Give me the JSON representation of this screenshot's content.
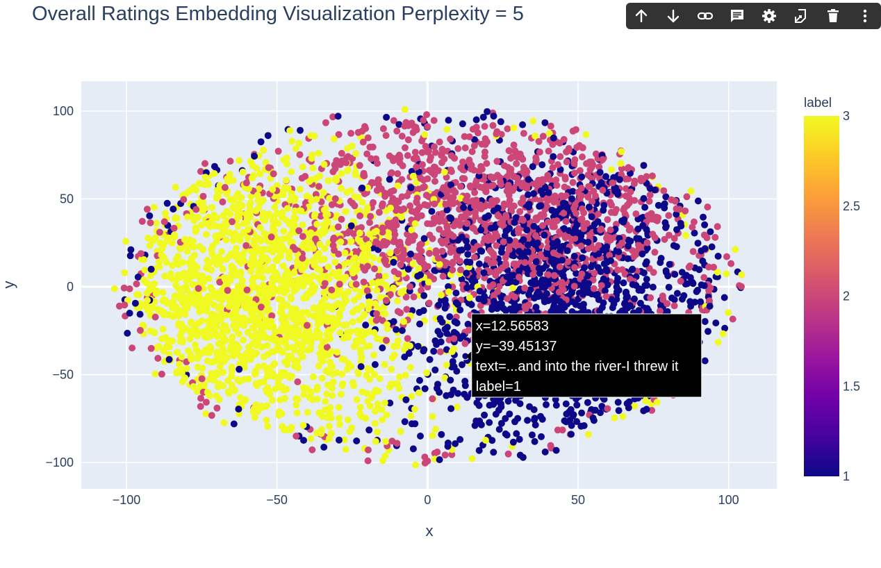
{
  "toolbar": {
    "buttons": [
      {
        "name": "move-up-button",
        "icon": "arrow-up-icon"
      },
      {
        "name": "move-down-button",
        "icon": "arrow-down-icon"
      },
      {
        "name": "link-button",
        "icon": "link-icon"
      },
      {
        "name": "comment-button",
        "icon": "comment-icon"
      },
      {
        "name": "settings-button",
        "icon": "gear-icon"
      },
      {
        "name": "edit-button",
        "icon": "edit-icon"
      },
      {
        "name": "delete-button",
        "icon": "trash-icon"
      },
      {
        "name": "more-button",
        "icon": "more-vertical-icon"
      }
    ]
  },
  "chart_data": {
    "type": "scatter",
    "title": "Overall Ratings Embedding Visualization Perplexity = 5",
    "xlabel": "x",
    "ylabel": "y",
    "xlim": [
      -115,
      116
    ],
    "ylim": [
      -115,
      117
    ],
    "x_ticks": [
      -100,
      -50,
      0,
      50,
      100
    ],
    "y_ticks": [
      -100,
      -50,
      0,
      50,
      100
    ],
    "x_tick_labels": [
      "−100",
      "−50",
      "0",
      "50",
      "100"
    ],
    "y_tick_labels": [
      "−100",
      "−50",
      "0",
      "50",
      "100"
    ],
    "grid": true,
    "plot_background": "#e5ecf6",
    "colorbar": {
      "title": "label",
      "min": 1,
      "max": 3,
      "ticks": [
        1,
        1.5,
        2,
        2.5,
        3
      ],
      "tick_labels": [
        "1",
        "1.5",
        "2",
        "2.5",
        "3"
      ],
      "colorscale": [
        "#0d0887",
        "#46039f",
        "#7201a8",
        "#9c179e",
        "#bd3786",
        "#d8576b",
        "#ed7953",
        "#fb9f3a",
        "#fdca26",
        "#f0f921"
      ]
    },
    "series": [
      {
        "label": 1,
        "color": "#0d0887",
        "cloud": {
          "cx": 45,
          "cy": -10,
          "sx": 26,
          "sy": 42,
          "n": 1400
        }
      },
      {
        "label": 2,
        "color": "#cc4778",
        "cloud": {
          "cx": 20,
          "cy": 40,
          "sx": 38,
          "sy": 32,
          "n": 1300
        }
      },
      {
        "label": 3,
        "color": "#f0f921",
        "cloud": {
          "cx": -55,
          "cy": -5,
          "sx": 27,
          "sy": 42,
          "n": 1700
        }
      }
    ],
    "ring": {
      "rx": 103,
      "ry": 100,
      "n": 300
    },
    "hover_point": {
      "x": 12.56583,
      "y": -39.45137,
      "label": 1
    },
    "tooltip": {
      "lines": [
        "x=12.56583",
        "y=−39.45137",
        "text=...and into the river-I threw it",
        "label=1"
      ]
    }
  }
}
